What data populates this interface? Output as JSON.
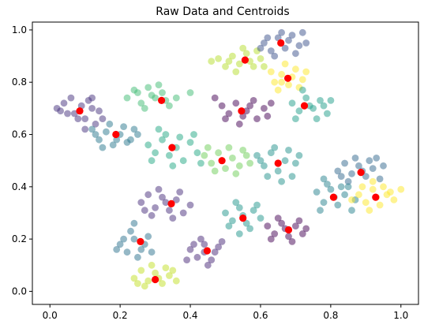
{
  "chart_data": {
    "type": "scatter",
    "title": "Raw Data and Centroids",
    "xlabel": "",
    "ylabel": "",
    "xlim": [
      -0.05,
      1.05
    ],
    "ylim": [
      -0.05,
      1.03
    ],
    "grid": false,
    "legend": "none",
    "x_ticks": [
      0.0,
      0.2,
      0.4,
      0.6,
      0.8,
      1.0
    ],
    "x_tick_labels": [
      "0.0",
      "0.2",
      "0.4",
      "0.6",
      "0.8",
      "1.0"
    ],
    "y_ticks": [
      0.0,
      0.2,
      0.4,
      0.6,
      0.8,
      1.0
    ],
    "y_tick_labels": [
      "0.0",
      "0.2",
      "0.4",
      "0.6",
      "0.8",
      "1.0"
    ],
    "point_alpha": 0.5,
    "centroid_color": "#ff0000",
    "series": [
      {
        "color": "#46327e",
        "points": [
          [
            0.02,
            0.7
          ],
          [
            0.04,
            0.72
          ],
          [
            0.06,
            0.74
          ],
          [
            0.07,
            0.68
          ],
          [
            0.09,
            0.71
          ],
          [
            0.1,
            0.66
          ],
          [
            0.11,
            0.73
          ],
          [
            0.12,
            0.7
          ],
          [
            0.13,
            0.64
          ],
          [
            0.14,
            0.69
          ],
          [
            0.08,
            0.66
          ],
          [
            0.05,
            0.68
          ],
          [
            0.12,
            0.74
          ],
          [
            0.15,
            0.66
          ],
          [
            0.03,
            0.69
          ],
          [
            0.1,
            0.62
          ]
        ]
      },
      {
        "color": "#2a788e",
        "points": [
          [
            0.12,
            0.62
          ],
          [
            0.14,
            0.58
          ],
          [
            0.16,
            0.61
          ],
          [
            0.18,
            0.56
          ],
          [
            0.2,
            0.6
          ],
          [
            0.22,
            0.57
          ],
          [
            0.24,
            0.62
          ],
          [
            0.17,
            0.64
          ],
          [
            0.19,
            0.58
          ],
          [
            0.21,
            0.63
          ],
          [
            0.15,
            0.55
          ],
          [
            0.23,
            0.58
          ],
          [
            0.13,
            0.6
          ],
          [
            0.25,
            0.6
          ]
        ]
      },
      {
        "color": "#3fbc73",
        "points": [
          [
            0.22,
            0.74
          ],
          [
            0.24,
            0.77
          ],
          [
            0.26,
            0.72
          ],
          [
            0.28,
            0.78
          ],
          [
            0.3,
            0.74
          ],
          [
            0.32,
            0.76
          ],
          [
            0.34,
            0.71
          ],
          [
            0.27,
            0.7
          ],
          [
            0.29,
            0.75
          ],
          [
            0.31,
            0.79
          ],
          [
            0.36,
            0.74
          ],
          [
            0.25,
            0.76
          ],
          [
            0.33,
            0.73
          ],
          [
            0.4,
            0.76
          ]
        ]
      },
      {
        "color": "#22a884",
        "points": [
          [
            0.28,
            0.56
          ],
          [
            0.3,
            0.53
          ],
          [
            0.32,
            0.58
          ],
          [
            0.34,
            0.52
          ],
          [
            0.36,
            0.55
          ],
          [
            0.38,
            0.5
          ],
          [
            0.4,
            0.57
          ],
          [
            0.33,
            0.6
          ],
          [
            0.35,
            0.48
          ],
          [
            0.42,
            0.53
          ],
          [
            0.31,
            0.62
          ],
          [
            0.37,
            0.59
          ],
          [
            0.29,
            0.5
          ],
          [
            0.43,
            0.49
          ],
          [
            0.41,
            0.6
          ]
        ]
      },
      {
        "color": "#6ece58",
        "points": [
          [
            0.44,
            0.52
          ],
          [
            0.46,
            0.49
          ],
          [
            0.48,
            0.53
          ],
          [
            0.5,
            0.47
          ],
          [
            0.52,
            0.51
          ],
          [
            0.54,
            0.48
          ],
          [
            0.56,
            0.52
          ],
          [
            0.47,
            0.46
          ],
          [
            0.51,
            0.55
          ],
          [
            0.53,
            0.45
          ],
          [
            0.45,
            0.55
          ],
          [
            0.55,
            0.54
          ],
          [
            0.49,
            0.5
          ],
          [
            0.57,
            0.49
          ]
        ]
      },
      {
        "color": "#440154",
        "points": [
          [
            0.49,
            0.71
          ],
          [
            0.51,
            0.68
          ],
          [
            0.53,
            0.72
          ],
          [
            0.55,
            0.67
          ],
          [
            0.57,
            0.71
          ],
          [
            0.59,
            0.66
          ],
          [
            0.61,
            0.7
          ],
          [
            0.54,
            0.64
          ],
          [
            0.58,
            0.73
          ],
          [
            0.62,
            0.67
          ],
          [
            0.5,
            0.66
          ],
          [
            0.56,
            0.69
          ],
          [
            0.63,
            0.72
          ],
          [
            0.47,
            0.74
          ]
        ]
      },
      {
        "color": "#21918c",
        "points": [
          [
            0.59,
            0.52
          ],
          [
            0.61,
            0.48
          ],
          [
            0.63,
            0.53
          ],
          [
            0.65,
            0.46
          ],
          [
            0.67,
            0.5
          ],
          [
            0.69,
            0.44
          ],
          [
            0.64,
            0.55
          ],
          [
            0.66,
            0.42
          ],
          [
            0.7,
            0.49
          ],
          [
            0.62,
            0.44
          ],
          [
            0.68,
            0.54
          ],
          [
            0.6,
            0.5
          ],
          [
            0.65,
            0.49
          ],
          [
            0.71,
            0.52
          ]
        ]
      },
      {
        "color": "#b5de2b",
        "points": [
          [
            0.48,
            0.89
          ],
          [
            0.5,
            0.86
          ],
          [
            0.52,
            0.9
          ],
          [
            0.54,
            0.87
          ],
          [
            0.56,
            0.91
          ],
          [
            0.58,
            0.86
          ],
          [
            0.6,
            0.89
          ],
          [
            0.53,
            0.84
          ],
          [
            0.57,
            0.88
          ],
          [
            0.46,
            0.88
          ],
          [
            0.61,
            0.86
          ],
          [
            0.55,
            0.93
          ],
          [
            0.51,
            0.88
          ],
          [
            0.59,
            0.92
          ]
        ]
      },
      {
        "color": "#3b528b",
        "points": [
          [
            0.61,
            0.95
          ],
          [
            0.63,
            0.92
          ],
          [
            0.65,
            0.97
          ],
          [
            0.67,
            0.93
          ],
          [
            0.69,
            0.98
          ],
          [
            0.71,
            0.94
          ],
          [
            0.64,
            0.9
          ],
          [
            0.68,
            0.96
          ],
          [
            0.72,
            0.99
          ],
          [
            0.66,
            0.99
          ],
          [
            0.62,
            0.97
          ],
          [
            0.7,
            0.91
          ],
          [
            0.73,
            0.95
          ],
          [
            0.6,
            0.93
          ]
        ]
      },
      {
        "color": "#fde725",
        "points": [
          [
            0.64,
            0.8
          ],
          [
            0.66,
            0.83
          ],
          [
            0.68,
            0.79
          ],
          [
            0.7,
            0.85
          ],
          [
            0.72,
            0.81
          ],
          [
            0.67,
            0.87
          ],
          [
            0.65,
            0.77
          ],
          [
            0.71,
            0.78
          ],
          [
            0.69,
            0.82
          ],
          [
            0.63,
            0.84
          ],
          [
            0.73,
            0.84
          ],
          [
            0.66,
            0.8
          ]
        ]
      },
      {
        "color": "#1f9e89",
        "points": [
          [
            0.69,
            0.72
          ],
          [
            0.71,
            0.69
          ],
          [
            0.73,
            0.74
          ],
          [
            0.75,
            0.7
          ],
          [
            0.77,
            0.73
          ],
          [
            0.79,
            0.68
          ],
          [
            0.72,
            0.77
          ],
          [
            0.76,
            0.66
          ],
          [
            0.78,
            0.71
          ],
          [
            0.7,
            0.66
          ],
          [
            0.74,
            0.71
          ],
          [
            0.8,
            0.73
          ]
        ]
      },
      {
        "color": "#31688e",
        "points": [
          [
            0.82,
            0.46
          ],
          [
            0.84,
            0.49
          ],
          [
            0.86,
            0.45
          ],
          [
            0.88,
            0.48
          ],
          [
            0.9,
            0.44
          ],
          [
            0.92,
            0.47
          ],
          [
            0.94,
            0.43
          ],
          [
            0.87,
            0.51
          ],
          [
            0.91,
            0.5
          ],
          [
            0.85,
            0.42
          ],
          [
            0.95,
            0.48
          ],
          [
            0.89,
            0.46
          ],
          [
            0.83,
            0.44
          ],
          [
            0.93,
            0.51
          ]
        ]
      },
      {
        "color": "#26828e",
        "points": [
          [
            0.76,
            0.38
          ],
          [
            0.78,
            0.34
          ],
          [
            0.8,
            0.39
          ],
          [
            0.82,
            0.33
          ],
          [
            0.84,
            0.37
          ],
          [
            0.86,
            0.31
          ],
          [
            0.79,
            0.41
          ],
          [
            0.83,
            0.4
          ],
          [
            0.77,
            0.31
          ],
          [
            0.81,
            0.36
          ],
          [
            0.85,
            0.4
          ],
          [
            0.78,
            0.43
          ],
          [
            0.87,
            0.35
          ]
        ]
      },
      {
        "color": "#fde725",
        "points": [
          [
            0.88,
            0.37
          ],
          [
            0.9,
            0.34
          ],
          [
            0.92,
            0.39
          ],
          [
            0.94,
            0.33
          ],
          [
            0.96,
            0.37
          ],
          [
            0.98,
            0.35
          ],
          [
            0.91,
            0.31
          ],
          [
            0.95,
            0.4
          ],
          [
            0.89,
            0.4
          ],
          [
            0.97,
            0.38
          ],
          [
            0.93,
            0.36
          ],
          [
            0.86,
            0.35
          ],
          [
            1.0,
            0.39
          ],
          [
            0.92,
            0.42
          ]
        ]
      },
      {
        "color": "#472d7b",
        "points": [
          [
            0.26,
            0.34
          ],
          [
            0.28,
            0.37
          ],
          [
            0.3,
            0.32
          ],
          [
            0.32,
            0.36
          ],
          [
            0.34,
            0.31
          ],
          [
            0.36,
            0.35
          ],
          [
            0.38,
            0.3
          ],
          [
            0.31,
            0.39
          ],
          [
            0.35,
            0.28
          ],
          [
            0.29,
            0.29
          ],
          [
            0.37,
            0.38
          ],
          [
            0.33,
            0.34
          ],
          [
            0.4,
            0.33
          ],
          [
            0.27,
            0.31
          ]
        ]
      },
      {
        "color": "#2c728e",
        "points": [
          [
            0.2,
            0.18
          ],
          [
            0.22,
            0.15
          ],
          [
            0.24,
            0.2
          ],
          [
            0.26,
            0.16
          ],
          [
            0.28,
            0.21
          ],
          [
            0.23,
            0.23
          ],
          [
            0.25,
            0.13
          ],
          [
            0.21,
            0.2
          ],
          [
            0.27,
            0.18
          ],
          [
            0.19,
            0.16
          ],
          [
            0.29,
            0.15
          ],
          [
            0.24,
            0.26
          ]
        ]
      },
      {
        "color": "#482878",
        "points": [
          [
            0.4,
            0.16
          ],
          [
            0.42,
            0.13
          ],
          [
            0.44,
            0.18
          ],
          [
            0.46,
            0.12
          ],
          [
            0.48,
            0.17
          ],
          [
            0.43,
            0.2
          ],
          [
            0.45,
            0.1
          ],
          [
            0.41,
            0.18
          ],
          [
            0.47,
            0.15
          ],
          [
            0.49,
            0.19
          ],
          [
            0.44,
            0.15
          ],
          [
            0.39,
            0.12
          ]
        ]
      },
      {
        "color": "#1f968b",
        "points": [
          [
            0.5,
            0.3
          ],
          [
            0.52,
            0.27
          ],
          [
            0.54,
            0.32
          ],
          [
            0.56,
            0.26
          ],
          [
            0.58,
            0.31
          ],
          [
            0.6,
            0.28
          ],
          [
            0.53,
            0.34
          ],
          [
            0.57,
            0.24
          ],
          [
            0.55,
            0.29
          ],
          [
            0.51,
            0.25
          ],
          [
            0.59,
            0.33
          ],
          [
            0.54,
            0.22
          ]
        ]
      },
      {
        "color": "#440154",
        "points": [
          [
            0.62,
            0.25
          ],
          [
            0.64,
            0.22
          ],
          [
            0.66,
            0.26
          ],
          [
            0.68,
            0.21
          ],
          [
            0.7,
            0.25
          ],
          [
            0.72,
            0.22
          ],
          [
            0.65,
            0.28
          ],
          [
            0.69,
            0.19
          ],
          [
            0.67,
            0.24
          ],
          [
            0.63,
            0.2
          ],
          [
            0.71,
            0.27
          ],
          [
            0.73,
            0.24
          ]
        ]
      },
      {
        "color": "#c2df23",
        "points": [
          [
            0.24,
            0.05
          ],
          [
            0.26,
            0.08
          ],
          [
            0.28,
            0.04
          ],
          [
            0.3,
            0.07
          ],
          [
            0.32,
            0.03
          ],
          [
            0.34,
            0.06
          ],
          [
            0.36,
            0.04
          ],
          [
            0.29,
            0.1
          ],
          [
            0.33,
            0.09
          ],
          [
            0.27,
            0.02
          ],
          [
            0.35,
            0.08
          ],
          [
            0.31,
            0.05
          ],
          [
            0.25,
            0.03
          ]
        ]
      }
    ],
    "centroids": [
      [
        0.085,
        0.69
      ],
      [
        0.188,
        0.6
      ],
      [
        0.318,
        0.73
      ],
      [
        0.348,
        0.55
      ],
      [
        0.49,
        0.5
      ],
      [
        0.546,
        0.69
      ],
      [
        0.65,
        0.49
      ],
      [
        0.556,
        0.885
      ],
      [
        0.658,
        0.95
      ],
      [
        0.678,
        0.815
      ],
      [
        0.725,
        0.71
      ],
      [
        0.886,
        0.455
      ],
      [
        0.808,
        0.36
      ],
      [
        0.928,
        0.36
      ],
      [
        0.346,
        0.335
      ],
      [
        0.258,
        0.19
      ],
      [
        0.448,
        0.155
      ],
      [
        0.55,
        0.28
      ],
      [
        0.68,
        0.235
      ],
      [
        0.3,
        0.045
      ]
    ]
  }
}
